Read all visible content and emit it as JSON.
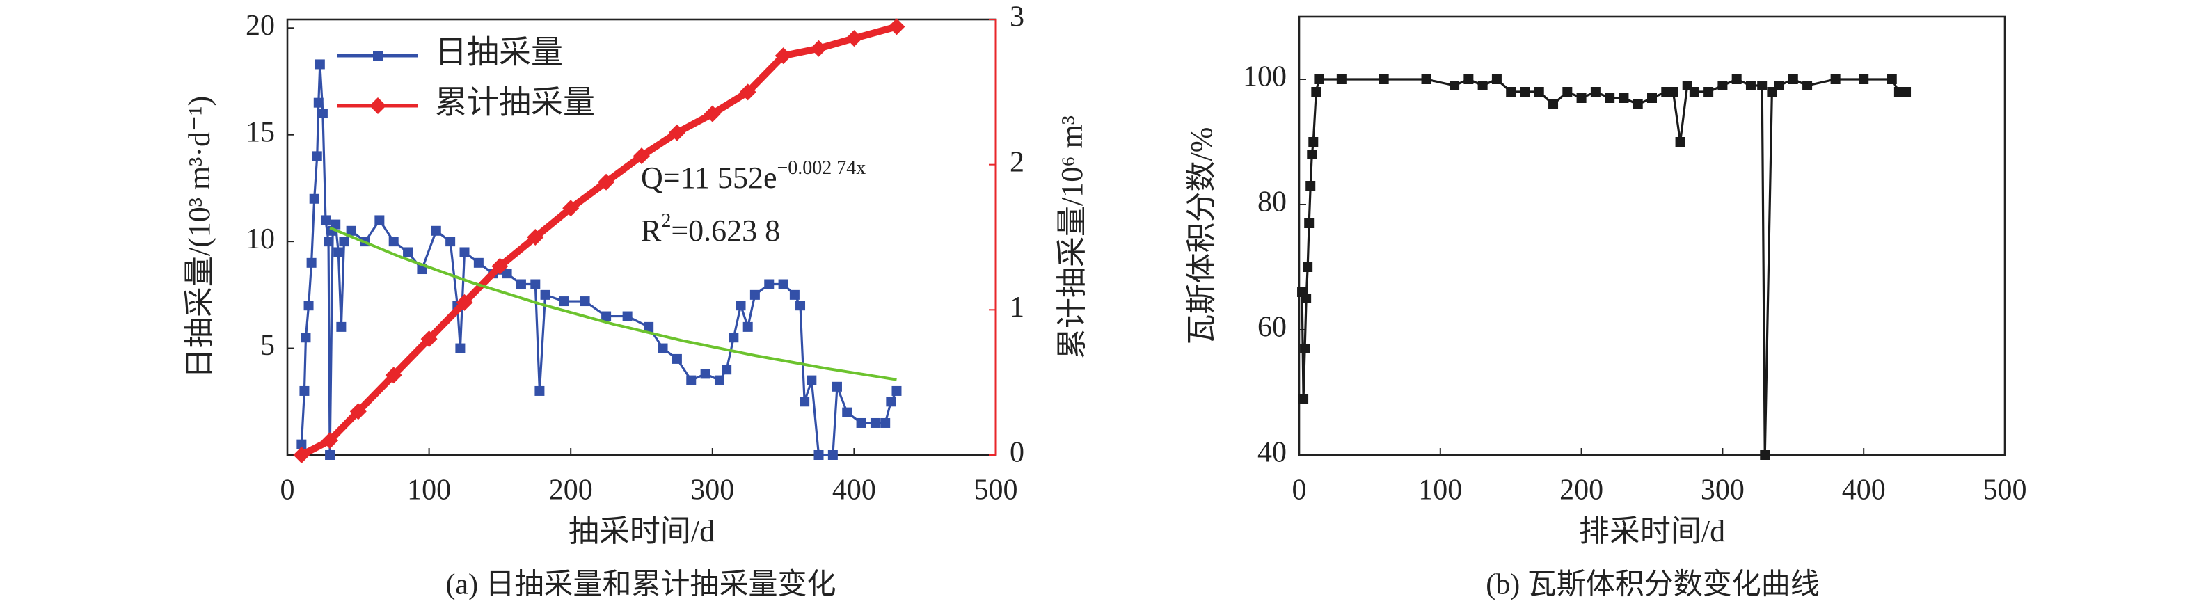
{
  "chart_data": [
    {
      "type": "line",
      "caption": "(a) 日抽采量和累计抽采量变化",
      "x_label": "抽采时间/d",
      "y_label": "日抽采量/(10³ m³·d⁻¹)",
      "y2_label": "累计抽采量/10⁶ m³",
      "xlim": [
        0,
        500
      ],
      "xticks": [
        0,
        100,
        200,
        300,
        400,
        500
      ],
      "ylim": [
        0,
        20.4
      ],
      "yticks": [
        5,
        10,
        15,
        20
      ],
      "y2lim": [
        0,
        3
      ],
      "y2ticks": [
        0,
        1,
        2,
        3
      ],
      "legend": "upper left",
      "series": [
        {
          "name": "日抽采量",
          "color": "#3350a8",
          "marker": "square",
          "x": [
            10,
            12,
            13,
            15,
            17,
            19,
            21,
            22,
            23,
            25,
            27,
            29,
            30,
            32,
            34,
            36,
            38,
            40,
            45,
            55,
            65,
            75,
            85,
            95,
            105,
            115,
            120,
            122,
            125,
            135,
            145,
            155,
            165,
            175,
            178,
            182,
            195,
            210,
            225,
            240,
            255,
            265,
            275,
            285,
            295,
            305,
            310,
            315,
            320,
            325,
            330,
            340,
            350,
            358,
            362,
            365,
            370,
            375,
            385,
            388,
            395,
            405,
            415,
            422,
            426,
            430
          ],
          "values": [
            0.5,
            3,
            5.5,
            7,
            9,
            12,
            14,
            16.5,
            18.3,
            16,
            11,
            10,
            0,
            10.5,
            10.8,
            9.5,
            6,
            10,
            10.5,
            10,
            11,
            10,
            9.5,
            8.7,
            10.5,
            10,
            7,
            5,
            9.5,
            9,
            8.5,
            8.5,
            8,
            8,
            3,
            7.5,
            7.2,
            7.2,
            6.5,
            6.5,
            6,
            5,
            4.5,
            3.5,
            3.8,
            3.5,
            4,
            5.5,
            7,
            6,
            7.5,
            8,
            8,
            7.5,
            7,
            2.5,
            3.5,
            0,
            0,
            3.2,
            2,
            1.5,
            1.5,
            1.5,
            2.5,
            3
          ]
        },
        {
          "name": "累计抽采量",
          "color": "#e8262a",
          "marker": "diamond",
          "axis": "y2",
          "x": [
            10,
            30,
            50,
            75,
            100,
            125,
            150,
            175,
            200,
            225,
            250,
            275,
            300,
            325,
            350,
            375,
            400,
            430
          ],
          "values": [
            0,
            0.1,
            0.3,
            0.55,
            0.8,
            1.05,
            1.3,
            1.5,
            1.7,
            1.88,
            2.06,
            2.22,
            2.35,
            2.5,
            2.75,
            2.8,
            2.87,
            2.95
          ]
        }
      ],
      "fit": {
        "color": "#6cc32e",
        "x": [
          30,
          80,
          130,
          180,
          230,
          280,
          330,
          380,
          430
        ],
        "values": [
          10.64,
          9.27,
          8.08,
          7.04,
          6.13,
          5.34,
          4.66,
          4.06,
          3.53
        ]
      },
      "annotations": [
        {
          "text": "Q=11 552e",
          "sup": "−0.002 74x"
        },
        {
          "text": "R",
          "sup": "2",
          "after": "=0.623 8"
        }
      ]
    },
    {
      "type": "line",
      "caption": "(b) 瓦斯体积分数变化曲线",
      "x_label": "排采时间/d",
      "y_label": "瓦斯体积分数/%",
      "xlim": [
        0,
        500
      ],
      "xticks": [
        0,
        100,
        200,
        300,
        400,
        500
      ],
      "ylim": [
        40,
        110
      ],
      "yticks": [
        40,
        60,
        80,
        100
      ],
      "series": [
        {
          "color": "#1a1a1a",
          "marker": "square",
          "x": [
            2,
            3,
            4,
            5,
            6,
            7,
            8,
            9,
            10,
            12,
            14,
            30,
            60,
            90,
            110,
            120,
            130,
            140,
            150,
            160,
            170,
            180,
            190,
            200,
            210,
            220,
            230,
            240,
            250,
            260,
            265,
            270,
            275,
            280,
            290,
            300,
            310,
            320,
            328,
            330,
            335,
            340,
            350,
            360,
            380,
            400,
            420,
            425,
            430
          ],
          "values": [
            66,
            49,
            57,
            65,
            70,
            77,
            83,
            88,
            90,
            98,
            100,
            100,
            100,
            100,
            99,
            100,
            99,
            100,
            98,
            98,
            98,
            96,
            98,
            97,
            98,
            97,
            97,
            96,
            97,
            98,
            98,
            90,
            99,
            98,
            98,
            99,
            100,
            99,
            99,
            40,
            98,
            99,
            100,
            99,
            100,
            100,
            100,
            98,
            98
          ]
        }
      ]
    }
  ]
}
